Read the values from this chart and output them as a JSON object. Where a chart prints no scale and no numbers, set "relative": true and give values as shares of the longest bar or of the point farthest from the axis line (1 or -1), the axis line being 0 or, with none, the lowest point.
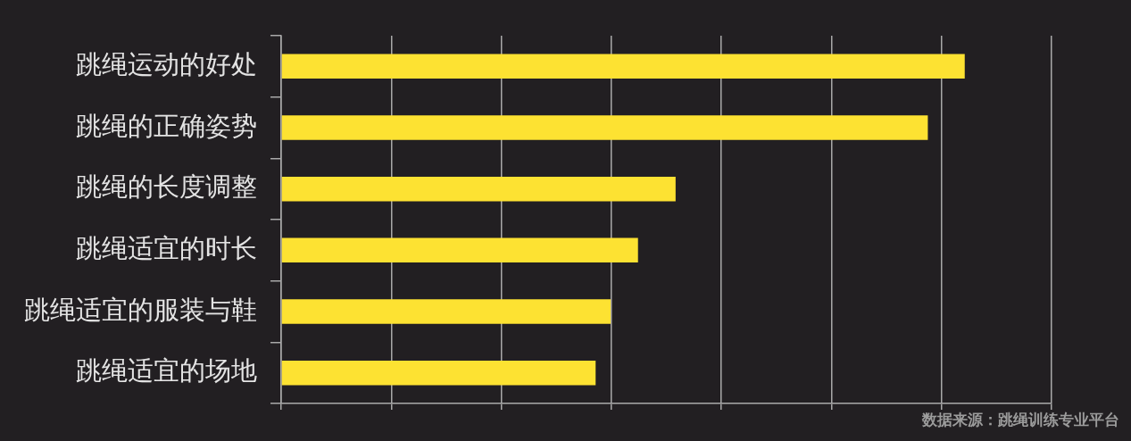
{
  "chart_data": {
    "type": "bar",
    "orientation": "horizontal",
    "relative": true,
    "categories": [
      "跳绳运动的好处",
      "跳绳的正确姿势",
      "跳绳的长度调整",
      "跳绳适宜的时长",
      "跳绳适宜的服装与鞋",
      "跳绳适宜的场地"
    ],
    "values": [
      1,
      0.946,
      0.577,
      0.522,
      0.482,
      0.46
    ],
    "color": "#fde232",
    "grid": "x",
    "annotations": [
      "数据来源：跳绳训练专业平台"
    ]
  }
}
